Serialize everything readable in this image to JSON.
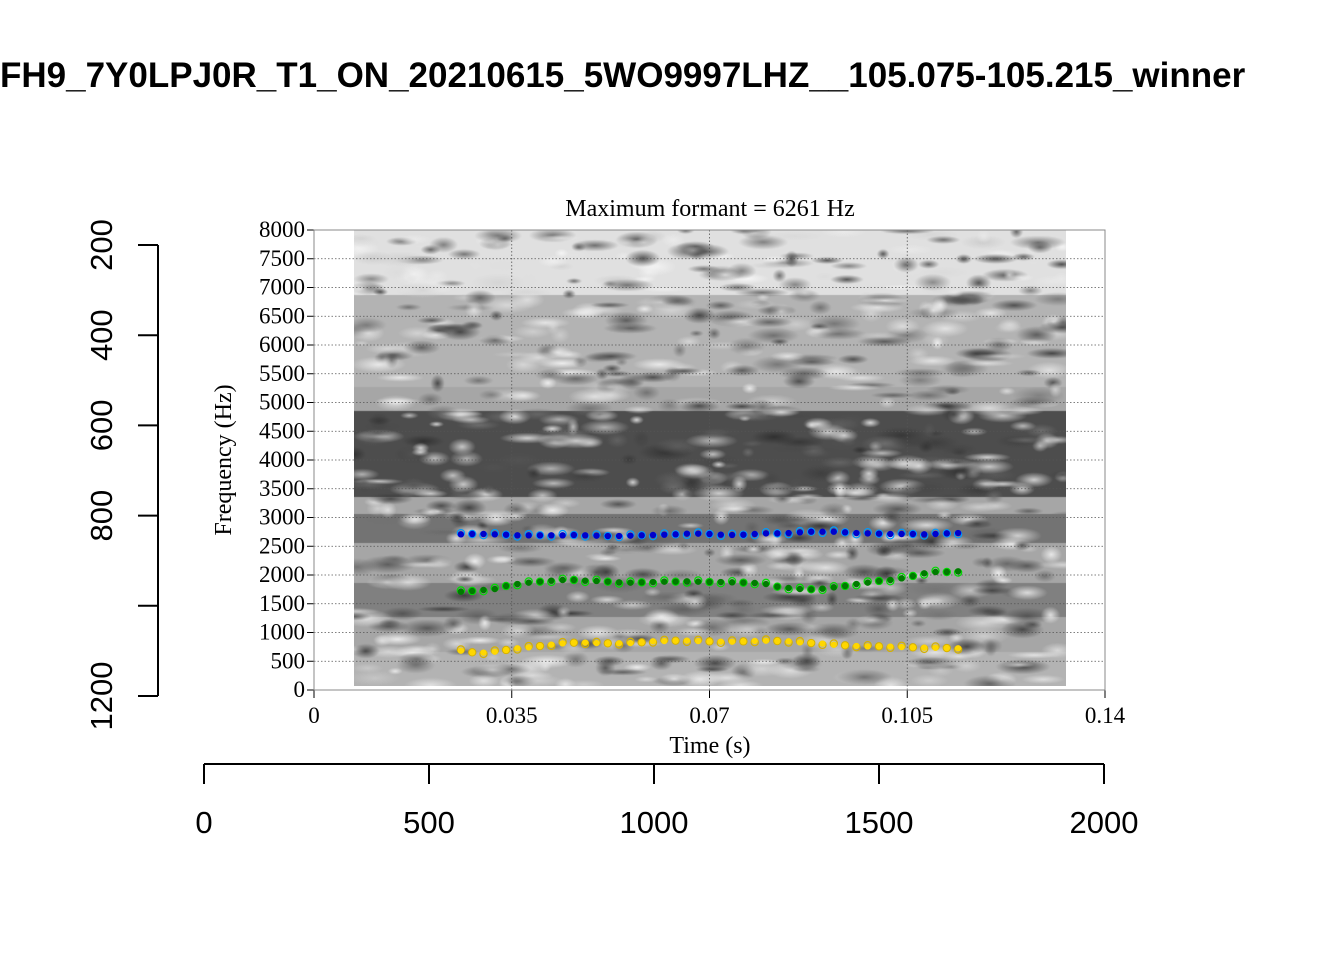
{
  "title": "FH9_7Y0LPJ0R_T1_ON_20210615_5WO9997LHZ__105.075-105.215_winner",
  "chart_data": {
    "type": "scatter",
    "subtitle": "Maximum formant  =  6261 Hz",
    "xlabel": "Time (s)",
    "ylabel": "Frequency (Hz)",
    "xlim": [
      0,
      0.14
    ],
    "ylim": [
      0,
      8000
    ],
    "x_ticks": [
      "0",
      "0.035",
      "0.07",
      "0.105",
      "0.14"
    ],
    "y_ticks": [
      "0",
      "500",
      "1000",
      "1500",
      "2000",
      "2500",
      "3000",
      "3500",
      "4000",
      "4500",
      "5000",
      "5500",
      "6000",
      "6500",
      "7000",
      "7500",
      "8000"
    ],
    "grid": true,
    "background": "grayscale spectrogram",
    "time_start": 0.026,
    "time_step": 0.002,
    "series": [
      {
        "color": "#0000cc",
        "ring_color": "#0099ff",
        "values": [
          2707,
          2713,
          2713,
          2707,
          2701,
          2690,
          2690,
          2690,
          2690,
          2690,
          2696,
          2690,
          2684,
          2678,
          2678,
          2684,
          2690,
          2696,
          2701,
          2707,
          2719,
          2719,
          2713,
          2701,
          2696,
          2701,
          2713,
          2724,
          2724,
          2730,
          2742,
          2753,
          2753,
          2753,
          2742,
          2730,
          2724,
          2719,
          2713,
          2713,
          2713,
          2707,
          2713,
          2724,
          2730
        ]
      },
      {
        "color": "#007a00",
        "ring_color": "#00dd00",
        "values": [
          1710,
          1722,
          1739,
          1756,
          1809,
          1843,
          1867,
          1884,
          1901,
          1913,
          1913,
          1901,
          1896,
          1884,
          1872,
          1867,
          1872,
          1878,
          1884,
          1884,
          1890,
          1884,
          1878,
          1878,
          1872,
          1867,
          1861,
          1843,
          1797,
          1774,
          1756,
          1751,
          1762,
          1785,
          1809,
          1843,
          1867,
          1896,
          1913,
          1942,
          1983,
          2029,
          2052,
          2052,
          2064
        ]
      },
      {
        "color": "#ffd700",
        "ring_color": "#d4b000",
        "values": [
          684,
          655,
          649,
          667,
          696,
          725,
          742,
          765,
          788,
          812,
          823,
          823,
          817,
          812,
          812,
          817,
          829,
          846,
          852,
          858,
          858,
          852,
          846,
          841,
          841,
          846,
          852,
          858,
          852,
          846,
          829,
          817,
          806,
          788,
          777,
          765,
          759,
          759,
          754,
          748,
          742,
          736,
          736,
          730,
          725
        ]
      }
    ],
    "outer_left_axis": {
      "ticks": [
        "200",
        "400",
        "600",
        "800",
        "1000",
        "1200"
      ],
      "labels": [
        "200",
        "400",
        "600",
        "800",
        "",
        "1200"
      ]
    },
    "outer_bottom_axis": {
      "ticks": [
        "0",
        "500",
        "1000",
        "1500",
        "2000"
      ]
    }
  }
}
